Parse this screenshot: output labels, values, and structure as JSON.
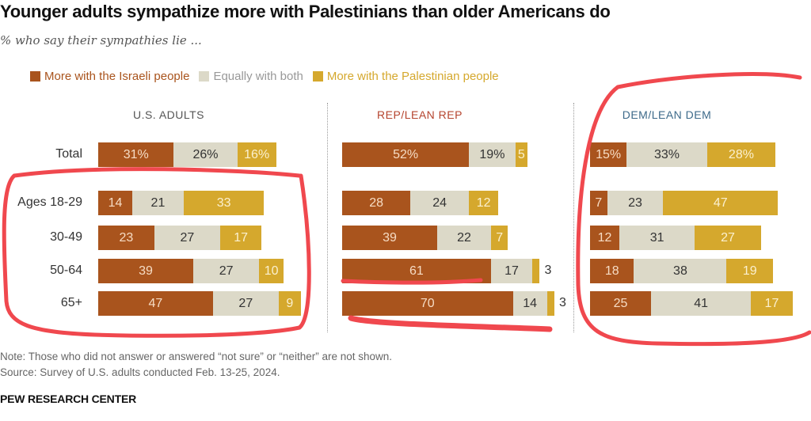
{
  "chart_data": {
    "type": "bar",
    "orientation": "horizontal-stacked",
    "title": "Younger adults sympathize more with Palestinians than older Americans do",
    "subtitle": "% who say their sympathies lie ...",
    "legend": [
      "More with the Israeli people",
      "Equally with both",
      "More with the Palestinian people"
    ],
    "legend_placement": "top",
    "colors": {
      "israeli": "#a9541d",
      "equal": "#dcd9c8",
      "palestinian": "#d5a82d"
    },
    "categories": [
      "Total",
      "Ages 18-29",
      "30-49",
      "50-64",
      "65+"
    ],
    "panels": [
      {
        "name": "U.S. ADULTS",
        "title_color": "#555555",
        "series": [
          {
            "name": "More with the Israeli people",
            "values": [
              31,
              14,
              23,
              39,
              47
            ]
          },
          {
            "name": "Equally with both",
            "values": [
              26,
              21,
              27,
              27,
              27
            ]
          },
          {
            "name": "More with the Palestinian people",
            "values": [
              16,
              33,
              17,
              10,
              9
            ]
          }
        ]
      },
      {
        "name": "REP/LEAN REP",
        "title_color": "#b5442e",
        "series": [
          {
            "name": "More with the Israeli people",
            "values": [
              52,
              28,
              39,
              61,
              70
            ]
          },
          {
            "name": "Equally with both",
            "values": [
              19,
              24,
              22,
              17,
              14
            ]
          },
          {
            "name": "More with the Palestinian people",
            "values": [
              5,
              12,
              7,
              3,
              3
            ]
          }
        ]
      },
      {
        "name": "DEM/LEAN DEM",
        "title_color": "#3d6a8a",
        "series": [
          {
            "name": "More with the Israeli people",
            "values": [
              15,
              7,
              12,
              18,
              25
            ]
          },
          {
            "name": "Equally with both",
            "values": [
              33,
              23,
              31,
              38,
              41
            ]
          },
          {
            "name": "More with the Palestinian people",
            "values": [
              28,
              47,
              27,
              19,
              17
            ]
          }
        ]
      }
    ],
    "total_row_suffix": "%",
    "grid": false
  },
  "footer": {
    "note": "Note: Those who did not answer or answered “not sure” or “neither” are not shown.",
    "source": "Source: Survey of U.S. adults conducted Feb. 13-25, 2024.",
    "brand": "PEW RESEARCH CENTER"
  },
  "annotation_color": "#f0484e"
}
